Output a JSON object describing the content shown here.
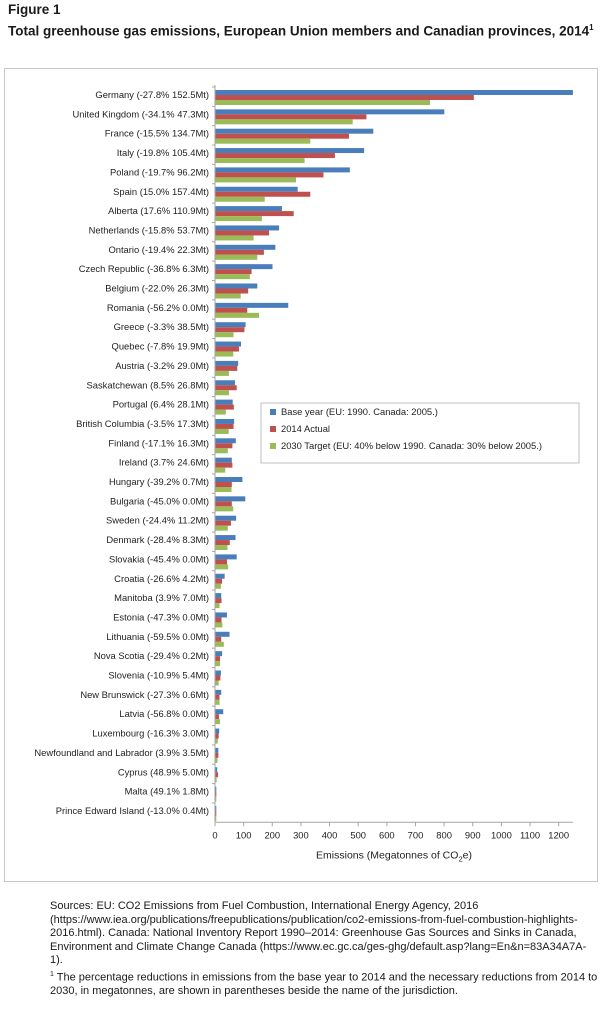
{
  "figure": {
    "label": "Figure 1",
    "title": "Total greenhouse gas emissions, European Union members and Canadian provinces, 2014",
    "title_footnote_mark": "1"
  },
  "chart_data": {
    "type": "bar",
    "orientation": "horizontal",
    "categories": [
      "Germany (-27.8% 152.5Mt)",
      "United Kingdom (-34.1% 47.3Mt)",
      "France (-15.5% 134.7Mt)",
      "Italy (-19.8% 105.4Mt)",
      "Poland (-19.7% 96.2Mt)",
      "Spain (15.0% 157.4Mt)",
      "Alberta (17.6% 110.9Mt)",
      "Netherlands (-15.8% 53.7Mt)",
      "Ontario (-19.4% 22.3Mt)",
      "Czech Republic (-36.8% 6.3Mt)",
      "Belgium (-22.0% 26.3Mt)",
      "Romania (-56.2% 0.0Mt)",
      "Greece (-3.3% 38.5Mt)",
      "Quebec (-7.8% 19.9Mt)",
      "Austria (-3.2% 29.0Mt)",
      "Saskatchewan (8.5% 26.8Mt)",
      "Portugal (6.4% 28.1Mt)",
      "British Columbia (-3.5% 17.3Mt)",
      "Finland (-17.1% 16.3Mt)",
      "Ireland (3.7% 24.6Mt)",
      "Hungary (-39.2% 0.7Mt)",
      "Bulgaria (-45.0% 0.0Mt)",
      "Sweden (-24.4% 11.2Mt)",
      "Denmark (-28.4% 8.3Mt)",
      "Slovakia (-45.4% 0.0Mt)",
      "Croatia (-26.6% 4.2Mt)",
      "Manitoba (3.9% 7.0Mt)",
      "Estonia (-47.3% 0.0Mt)",
      "Lithuania (-59.5% 0.0Mt)",
      "Nova Scotia (-29.4% 0.2Mt)",
      "Slovenia (-10.9% 5.4Mt)",
      "New Brunswick (-27.3% 0.6Mt)",
      "Latvia (-56.8% 0.0Mt)",
      "Luxembourg (-16.3% 3.0Mt)",
      "Newfoundland and Labrador (3.9% 3.5Mt)",
      "Cyprus (48.9% 5.0Mt)",
      "Malta (49.1% 1.8Mt)",
      "Prince Edward Island (-13.0% 0.4Mt)"
    ],
    "series": [
      {
        "name": "Base year (EU: 1990. Canada: 2005.)",
        "color": "#4a7ebb",
        "values": [
          1248,
          799,
          551,
          519,
          469,
          287,
          232,
          222,
          209,
          199,
          146,
          254,
          105,
          89,
          79,
          68,
          60,
          65,
          71,
          57,
          94,
          104,
          72,
          70,
          74,
          32,
          20,
          40,
          49,
          23,
          19,
          20,
          27,
          13,
          10,
          6,
          2,
          2
        ]
      },
      {
        "name": "2014 Actual",
        "color": "#c0504d",
        "values": [
          902,
          527,
          466,
          417,
          377,
          331,
          273,
          187,
          169,
          126,
          114,
          111,
          101,
          82,
          76,
          74,
          64,
          63,
          59,
          59,
          57,
          57,
          54,
          50,
          40,
          23,
          21,
          21,
          20,
          16,
          17,
          14,
          12,
          11,
          10,
          9,
          3,
          2
        ]
      },
      {
        "name": "2030 Target (EU: 40% below 1990. Canada: 30% below 2005.)",
        "color": "#9bbb59",
        "values": [
          749,
          479,
          331,
          311,
          281,
          172,
          162,
          133,
          146,
          120,
          88,
          152,
          63,
          62,
          47,
          47,
          36,
          46,
          43,
          34,
          56,
          62,
          43,
          42,
          44,
          19,
          14,
          24,
          29,
          16,
          11,
          14,
          16,
          8,
          7,
          4,
          1,
          1
        ]
      }
    ],
    "xlabel_text": "Emissions (Megatonnes of CO",
    "xlabel_sub": "2",
    "xlabel_end": "e)",
    "xlim": [
      0,
      1250
    ],
    "xticks": [
      0,
      100,
      200,
      300,
      400,
      500,
      600,
      700,
      800,
      900,
      1000,
      1100,
      1200
    ],
    "legend_position": "middle-right",
    "grid": false
  },
  "notes": {
    "sources": "Sources: EU: CO2 Emissions from Fuel Combustion, International Energy Agency, 2016 (https://www.iea.org/publications/freepublications/publication/co2-emissions-from-fuel-combustion-highlights-2016.html). Canada: National Inventory Report 1990–2014: Greenhouse Gas Sources and Sinks in Canada, Environment and Climate Change Canada (https://www.ec.gc.ca/ges-ghg/default.asp?lang=En&n=83A34A7A-1).",
    "footnote_mark": "1",
    "footnote": " The percentage reductions in emissions from the base year to 2014 and the necessary reductions from 2014 to 2030, in megatonnes, are shown in parentheses beside the name of the jurisdiction."
  }
}
